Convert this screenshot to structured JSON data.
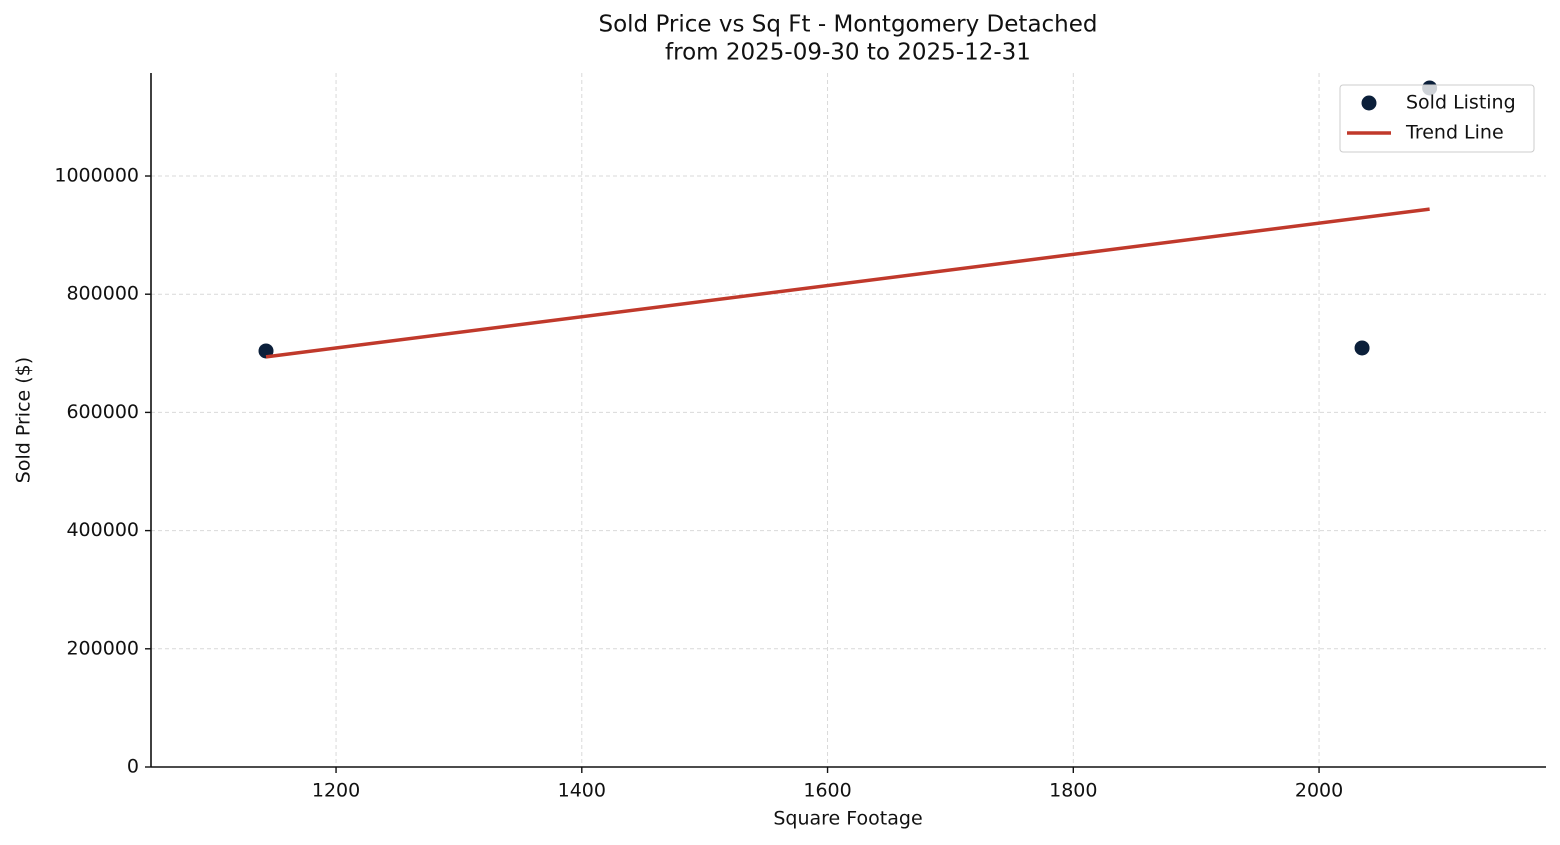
{
  "chart_data": {
    "type": "scatter",
    "title": "Sold Price vs Sq Ft - Montgomery Detached",
    "subtitle": "from 2025-09-30 to 2025-12-31",
    "x_label": "Square Footage",
    "y_label": "Sold Price ($)",
    "series": [
      {
        "name": "Sold Listing",
        "type": "scatter",
        "color": "#0b1f3a",
        "x": [
          1143,
          2035,
          2090
        ],
        "values": [
          704000,
          709000,
          1149000
        ]
      },
      {
        "name": "Trend Line",
        "type": "line",
        "color": "#c0392b",
        "x": [
          1143,
          2090
        ],
        "values": [
          694000,
          944000
        ]
      }
    ],
    "xlim": [
      1049.4,
      2184.7
    ],
    "ylim": [
      0,
      1174300
    ],
    "xticks": [
      1200,
      1400,
      1600,
      1800,
      2000
    ],
    "yticks": [
      0,
      200000,
      400000,
      600000,
      800000,
      1000000
    ],
    "grid": true,
    "legend": "upper right"
  }
}
